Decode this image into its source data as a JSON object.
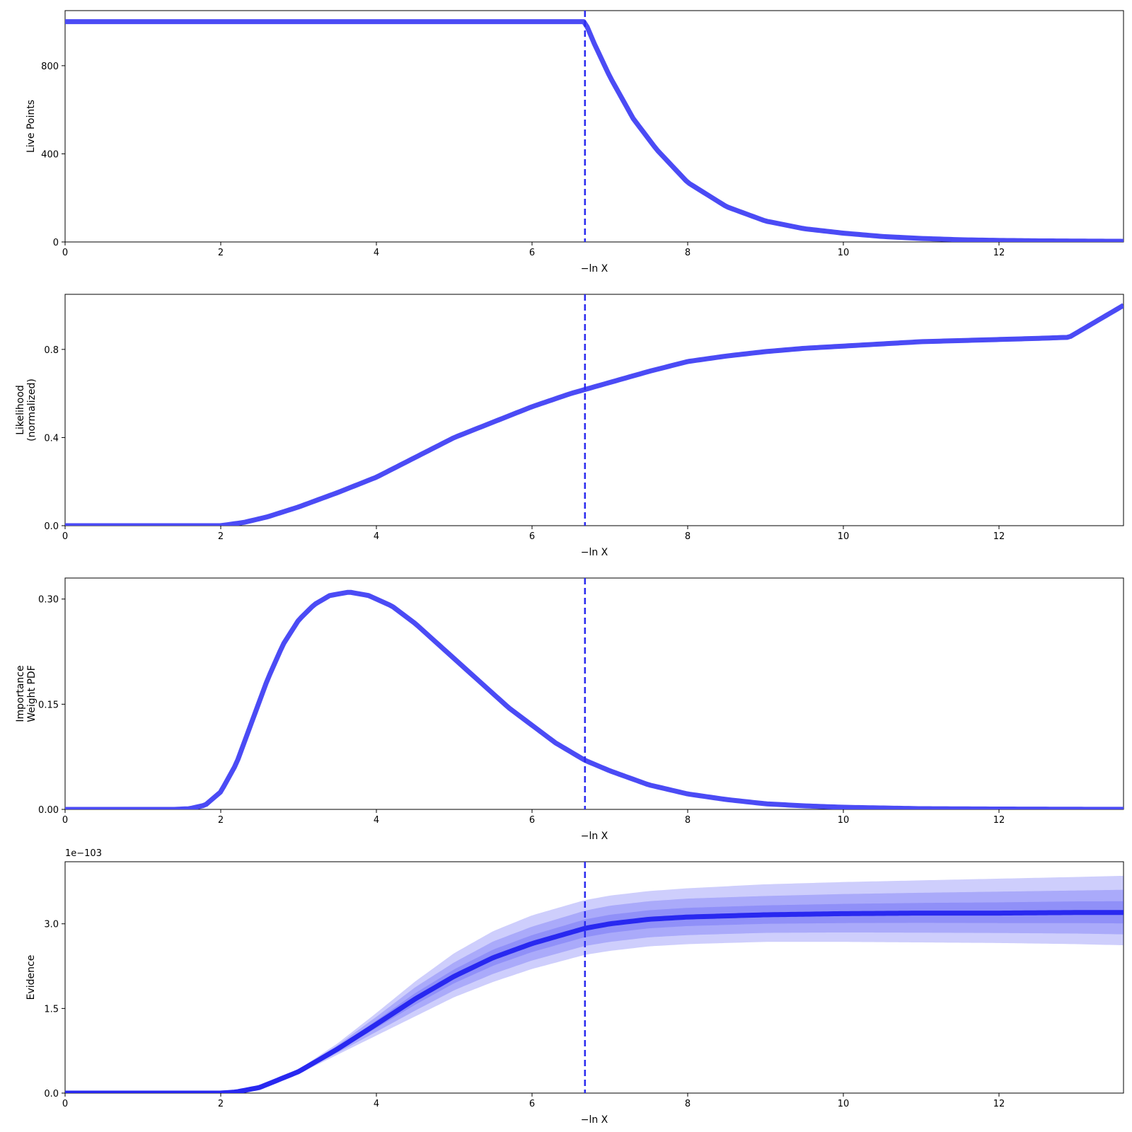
{
  "vline_x": 6.68,
  "xlim": [
    0,
    13.6
  ],
  "x_ticks": [
    0,
    2,
    4,
    6,
    8,
    10,
    12
  ],
  "colors": {
    "line": "#4b4bf5",
    "vline": "#2b2bef",
    "evidence_line": "#2828f0",
    "band": "#4b4bf5"
  },
  "panels": [
    {
      "id": "live-points",
      "xlabel": "−ln X",
      "ylabel": [
        "Live Points"
      ],
      "ylim": [
        0,
        1050
      ],
      "y_ticks": [
        0,
        400,
        800
      ],
      "y_tick_labels": [
        "0",
        "400",
        "800"
      ]
    },
    {
      "id": "likelihood",
      "xlabel": "−ln X",
      "ylabel": [
        "Likelihood",
        "(normalized)"
      ],
      "ylim": [
        0,
        1.05
      ],
      "y_ticks": [
        0,
        0.4,
        0.8
      ],
      "y_tick_labels": [
        "0.0",
        "0.4",
        "0.8"
      ]
    },
    {
      "id": "importance-weight",
      "xlabel": "−ln X",
      "ylabel": [
        "Importance",
        "Weight PDF"
      ],
      "ylim": [
        0,
        0.33
      ],
      "y_ticks": [
        0,
        0.15,
        0.3
      ],
      "y_tick_labels": [
        "0.00",
        "0.15",
        "0.30"
      ]
    },
    {
      "id": "evidence",
      "xlabel": "−ln X",
      "ylabel": [
        "Evidence"
      ],
      "ylim": [
        0,
        4.1
      ],
      "y_ticks": [
        0,
        1.5,
        3.0
      ],
      "y_tick_labels": [
        "0.0",
        "1.5",
        "3.0"
      ],
      "offset_text": "1e−103"
    }
  ],
  "chart_data": [
    {
      "type": "line",
      "xlabel": "−ln X",
      "ylabel": "Live Points",
      "xlim": [
        0,
        13.6
      ],
      "ylim": [
        0,
        1050
      ],
      "series": [
        {
          "x": [
            0,
            1,
            2,
            3,
            4,
            5,
            6,
            6.68,
            6.8,
            7.0,
            7.3,
            7.6,
            8.0,
            8.5,
            9.0,
            9.5,
            10.0,
            10.5,
            11.0,
            11.5,
            12.0,
            12.5,
            13.0,
            13.6
          ],
          "values": [
            1000,
            1000,
            1000,
            1000,
            1000,
            1000,
            1000,
            1000,
            900,
            750,
            560,
            420,
            270,
            160,
            95,
            60,
            40,
            25,
            16,
            10,
            7,
            5,
            4,
            3
          ]
        }
      ],
      "vline": 6.68
    },
    {
      "type": "line",
      "xlabel": "−ln X",
      "ylabel": "Likelihood (normalized)",
      "xlim": [
        0,
        13.6
      ],
      "ylim": [
        0,
        1.05
      ],
      "series": [
        {
          "x": [
            0,
            1,
            2.0,
            2.1,
            2.3,
            2.6,
            3.0,
            3.5,
            4.0,
            4.5,
            5.0,
            5.5,
            6.0,
            6.5,
            7.0,
            7.5,
            8.0,
            8.5,
            9.0,
            9.5,
            10.0,
            10.5,
            11.0,
            11.5,
            12.0,
            12.5,
            12.9,
            13.6
          ],
          "values": [
            0,
            0,
            0,
            0.005,
            0.015,
            0.04,
            0.085,
            0.15,
            0.22,
            0.31,
            0.4,
            0.47,
            0.54,
            0.6,
            0.65,
            0.7,
            0.745,
            0.77,
            0.79,
            0.805,
            0.815,
            0.825,
            0.835,
            0.84,
            0.845,
            0.85,
            0.855,
            1.0
          ]
        }
      ],
      "vline": 6.68
    },
    {
      "type": "line",
      "xlabel": "−ln X",
      "ylabel": "Importance Weight PDF",
      "xlim": [
        0,
        13.6
      ],
      "ylim": [
        0,
        0.33
      ],
      "series": [
        {
          "x": [
            0,
            1,
            1.4,
            1.6,
            1.8,
            2.0,
            2.2,
            2.4,
            2.6,
            2.8,
            3.0,
            3.2,
            3.4,
            3.65,
            3.9,
            4.2,
            4.5,
            4.8,
            5.1,
            5.4,
            5.7,
            6.0,
            6.3,
            6.68,
            7.0,
            7.5,
            8.0,
            8.5,
            9.0,
            9.5,
            10.0,
            11.0,
            12.0,
            13.0,
            13.6
          ],
          "values": [
            0,
            0,
            0,
            0.001,
            0.006,
            0.025,
            0.065,
            0.125,
            0.185,
            0.235,
            0.27,
            0.292,
            0.305,
            0.31,
            0.305,
            0.29,
            0.265,
            0.235,
            0.205,
            0.175,
            0.145,
            0.12,
            0.095,
            0.07,
            0.055,
            0.035,
            0.022,
            0.014,
            0.008,
            0.005,
            0.003,
            0.001,
            0.0005,
            0.0002,
            0.0001
          ]
        }
      ],
      "vline": 6.68
    },
    {
      "type": "area",
      "xlabel": "−ln X",
      "ylabel": "Evidence",
      "xlim": [
        0,
        13.6
      ],
      "ylim": [
        0,
        4.1
      ],
      "y_scale_text": "1e−103",
      "series": [
        {
          "name": "",
          "x": [
            0,
            1,
            2.0,
            2.2,
            2.5,
            3.0,
            3.5,
            4.0,
            4.5,
            5.0,
            5.5,
            6.0,
            6.68,
            7.0,
            7.5,
            8.0,
            9.0,
            10.0,
            11.0,
            12.0,
            13.0,
            13.6
          ],
          "values": [
            0,
            0,
            0,
            0.02,
            0.1,
            0.38,
            0.78,
            1.22,
            1.67,
            2.07,
            2.4,
            2.65,
            2.92,
            3.0,
            3.08,
            3.12,
            3.16,
            3.18,
            3.19,
            3.19,
            3.2,
            3.2
          ]
        }
      ],
      "bands": [
        {
          "level": "3sigma",
          "lower": [
            0,
            0,
            0,
            0.02,
            0.09,
            0.34,
            0.68,
            1.02,
            1.36,
            1.7,
            1.97,
            2.2,
            2.45,
            2.52,
            2.6,
            2.64,
            2.68,
            2.68,
            2.67,
            2.66,
            2.64,
            2.62
          ],
          "upper": [
            0,
            0,
            0,
            0.02,
            0.11,
            0.42,
            0.88,
            1.42,
            1.98,
            2.48,
            2.87,
            3.15,
            3.42,
            3.5,
            3.58,
            3.63,
            3.7,
            3.74,
            3.77,
            3.8,
            3.83,
            3.85
          ]
        },
        {
          "level": "2sigma",
          "lower": [
            0,
            0,
            0,
            0.02,
            0.093,
            0.353,
            0.713,
            1.087,
            1.463,
            1.823,
            2.113,
            2.35,
            2.607,
            2.68,
            2.76,
            2.8,
            2.84,
            2.847,
            2.843,
            2.837,
            2.827,
            2.813
          ],
          "upper": [
            0,
            0,
            0,
            0.02,
            0.107,
            0.407,
            0.847,
            1.353,
            1.877,
            2.317,
            2.687,
            2.95,
            3.233,
            3.32,
            3.4,
            3.447,
            3.493,
            3.527,
            3.55,
            3.57,
            3.59,
            3.603
          ]
        },
        {
          "level": "1sigma",
          "lower": [
            0,
            0,
            0,
            0.02,
            0.097,
            0.367,
            0.747,
            1.153,
            1.567,
            1.947,
            2.257,
            2.5,
            2.763,
            2.84,
            2.92,
            2.96,
            3.0,
            3.013,
            3.017,
            3.013,
            3.013,
            3.007
          ],
          "upper": [
            0,
            0,
            0,
            0.02,
            0.103,
            0.393,
            0.813,
            1.287,
            1.773,
            2.193,
            2.543,
            2.8,
            3.077,
            3.16,
            3.24,
            3.283,
            3.327,
            3.353,
            3.37,
            3.38,
            3.397,
            3.4
          ]
        }
      ],
      "vline": 6.68
    }
  ]
}
